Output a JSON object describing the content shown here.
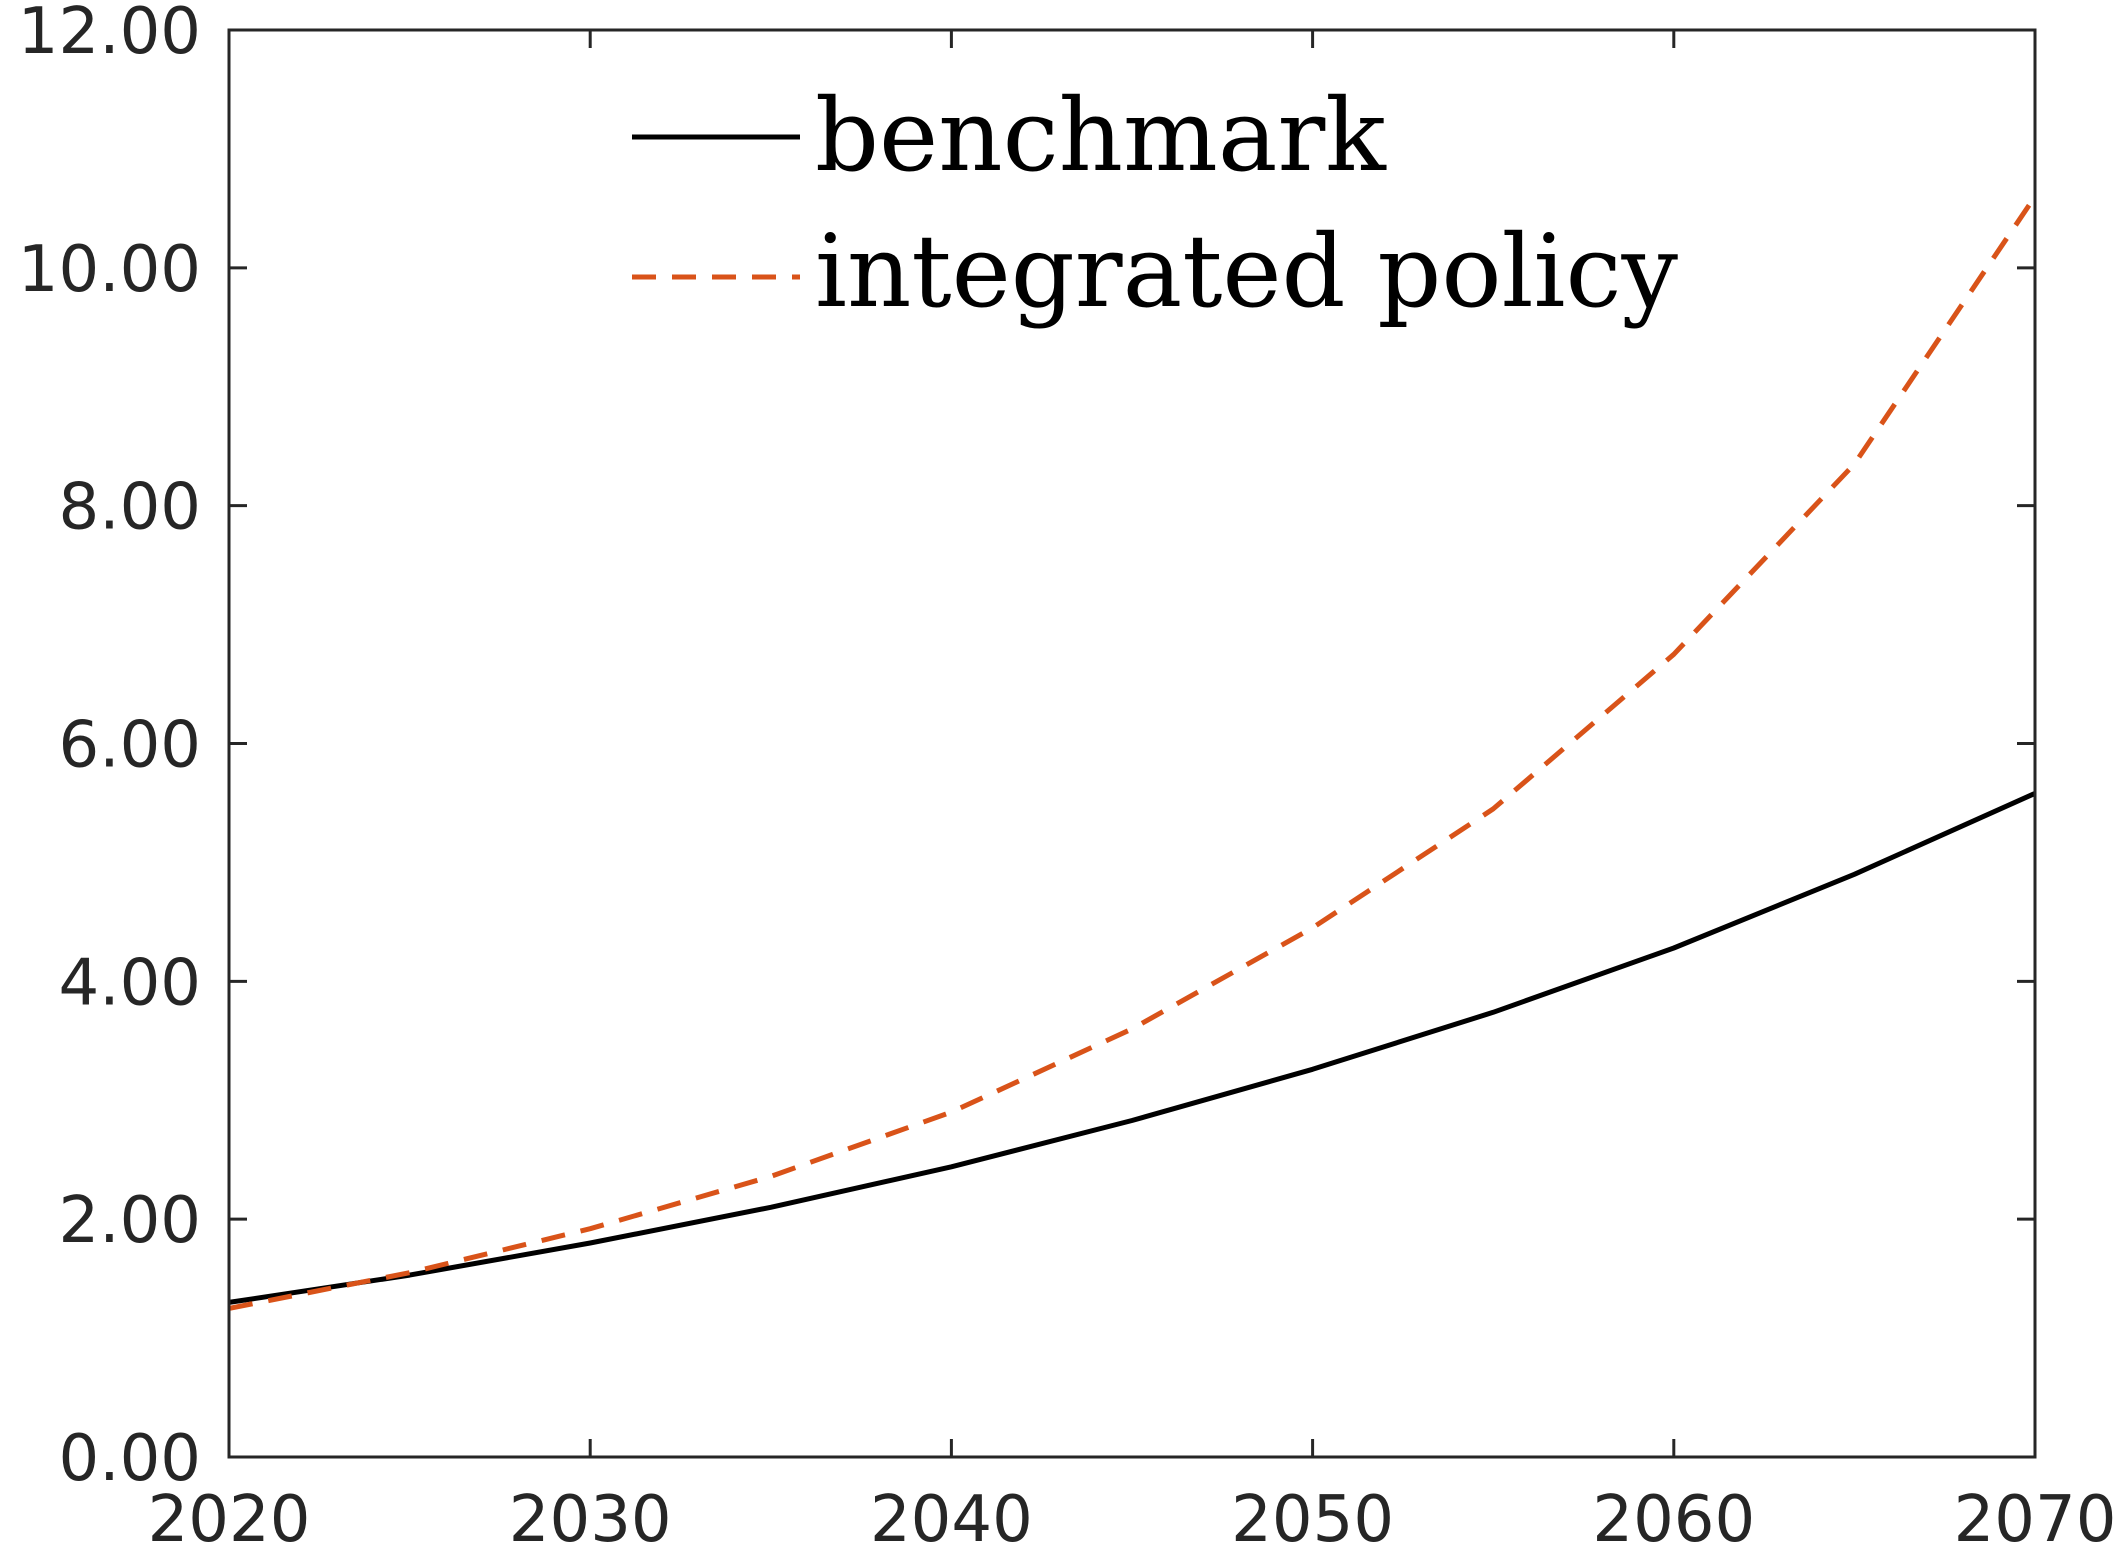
{
  "chart_data": {
    "type": "line",
    "title": "",
    "xlabel": "",
    "ylabel": "",
    "xlim": [
      2020,
      2070
    ],
    "ylim": [
      0,
      12
    ],
    "xticks": [
      2020,
      2030,
      2040,
      2050,
      2060,
      2070
    ],
    "xtick_labels": [
      "2020",
      "2030",
      "2040",
      "2050",
      "2060",
      "2070"
    ],
    "yticks": [
      0,
      2,
      4,
      6,
      8,
      10,
      12
    ],
    "ytick_labels": [
      "0.00",
      "2.00",
      "4.00",
      "6.00",
      "8.00",
      "10.00",
      "12.00"
    ],
    "grid": false,
    "legend_position": "top-center",
    "x": [
      2020,
      2025,
      2030,
      2035,
      2040,
      2045,
      2050,
      2055,
      2060,
      2065,
      2070
    ],
    "series": [
      {
        "name": "benchmark",
        "values": [
          1.3,
          1.53,
          1.8,
          2.1,
          2.44,
          2.83,
          3.26,
          3.74,
          4.28,
          4.9,
          5.58
        ],
        "color": "#000000",
        "style": "solid"
      },
      {
        "name": "integrated policy",
        "values": [
          1.25,
          1.55,
          1.92,
          2.36,
          2.9,
          3.6,
          4.45,
          5.45,
          6.75,
          8.35,
          10.6
        ],
        "color": "#D95319",
        "style": "dashed"
      }
    ]
  }
}
